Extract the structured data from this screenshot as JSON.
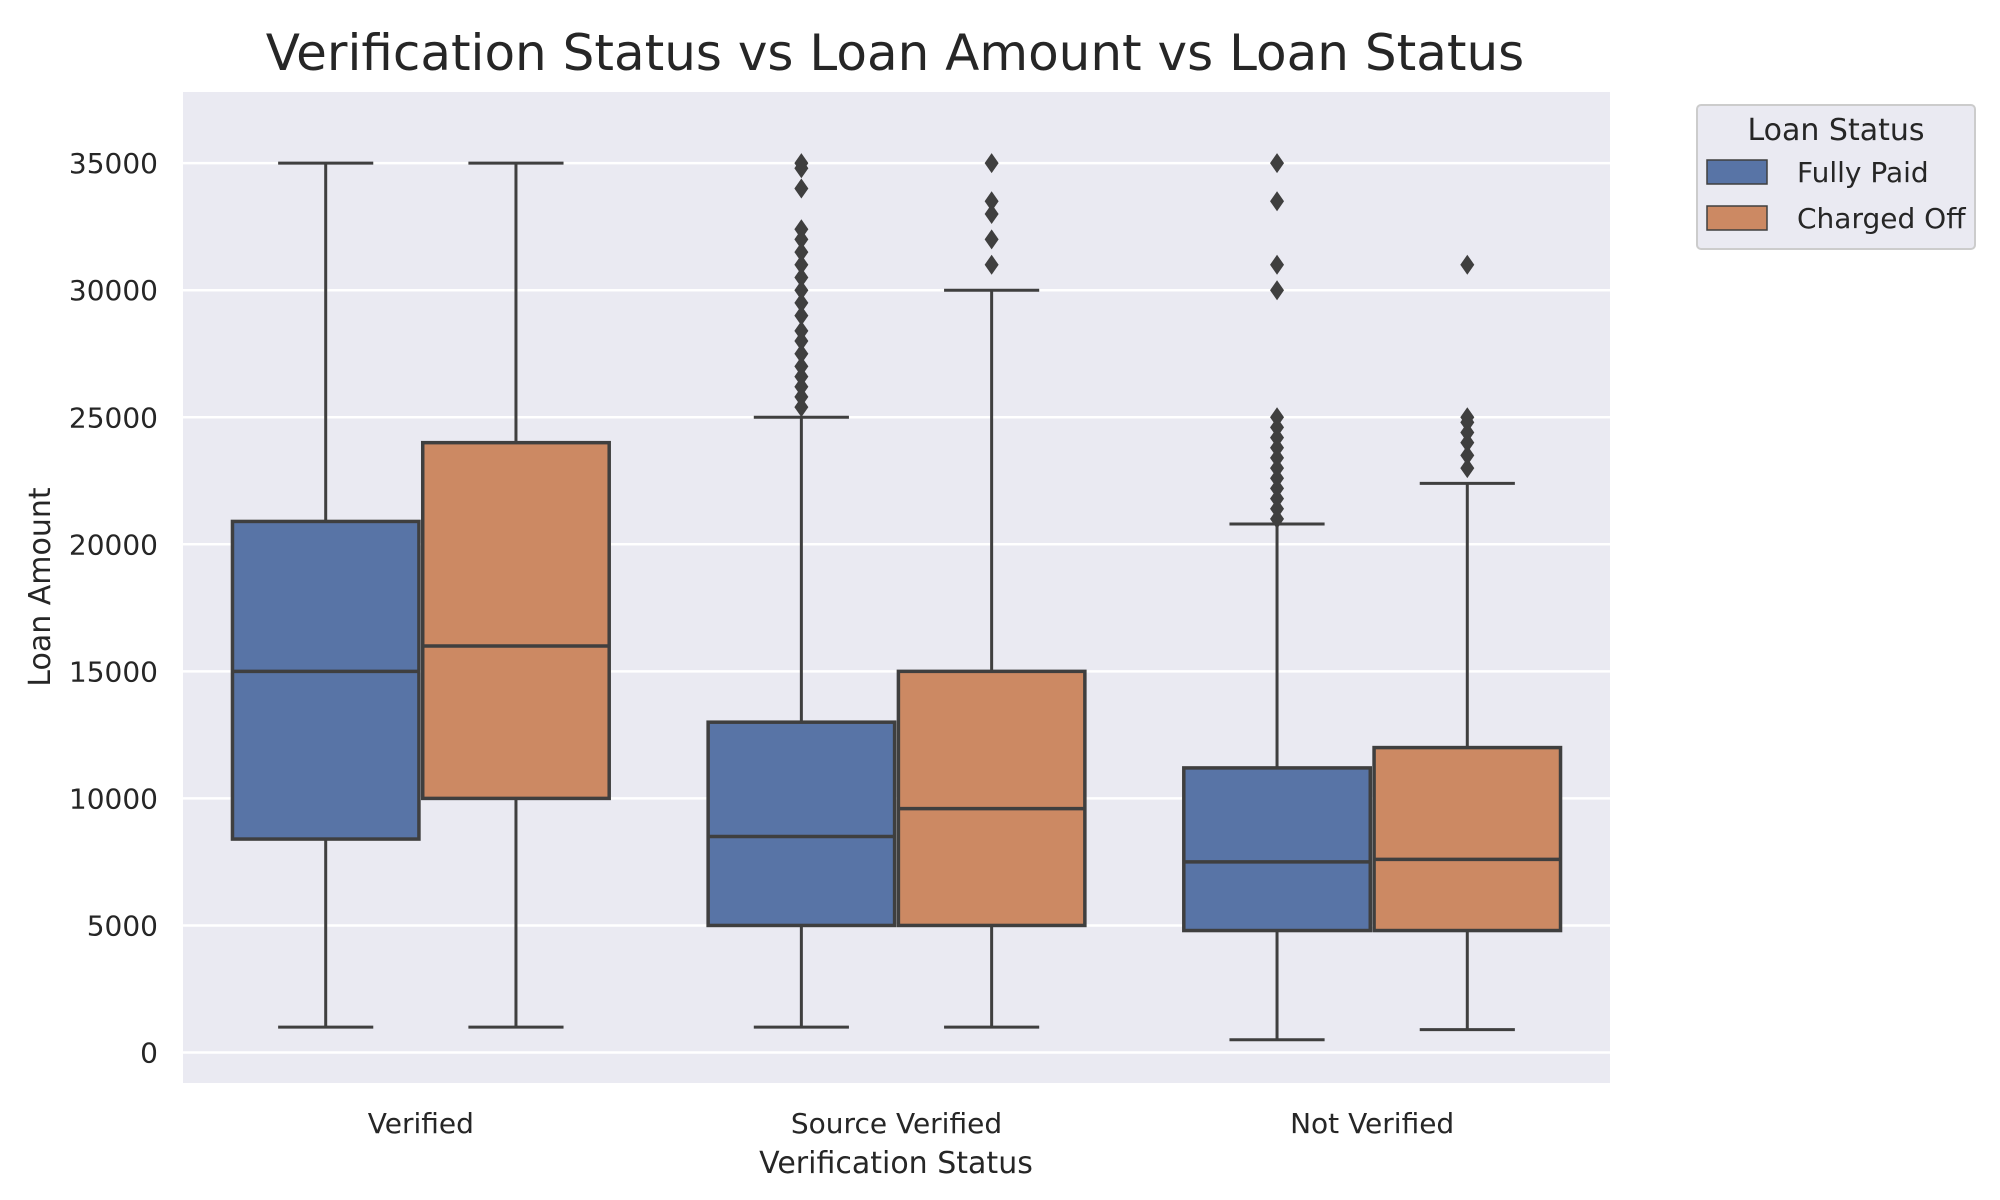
{
  "chart_data": {
    "type": "box",
    "title": "Verification Status vs Loan Amount vs Loan Status",
    "xlabel": "Verification Status",
    "ylabel": "Loan Amount",
    "ylim": [
      -1200,
      37800
    ],
    "yticks": [
      0,
      5000,
      10000,
      15000,
      20000,
      25000,
      30000,
      35000
    ],
    "categories": [
      "Verified",
      "Source Verified",
      "Not Verified"
    ],
    "grid": true,
    "legend": {
      "title": "Loan Status",
      "placement": "outside-top-right"
    },
    "series": [
      {
        "name": "Fully Paid",
        "color": "#5874a6",
        "boxes": [
          {
            "whisker_low": 1000,
            "q1": 8400,
            "median": 15000,
            "q3": 20900,
            "whisker_high": 35000,
            "outliers": []
          },
          {
            "whisker_low": 1000,
            "q1": 5000,
            "median": 8500,
            "q3": 13000,
            "whisker_high": 25000,
            "outliers": [
              25400,
              25800,
              26200,
              26600,
              27000,
              27500,
              28000,
              28400,
              29000,
              29500,
              30000,
              30500,
              31000,
              31500,
              32000,
              32400,
              34000,
              34800,
              35000
            ]
          },
          {
            "whisker_low": 500,
            "q1": 4800,
            "median": 7500,
            "q3": 11200,
            "whisker_high": 20800,
            "outliers": [
              21000,
              21400,
              21800,
              22200,
              22600,
              23000,
              23400,
              23800,
              24200,
              24600,
              25000,
              30000,
              31000,
              33500,
              35000
            ]
          }
        ]
      },
      {
        "name": "Charged Off",
        "color": "#cc8963",
        "boxes": [
          {
            "whisker_low": 1000,
            "q1": 10000,
            "median": 16000,
            "q3": 24000,
            "whisker_high": 35000,
            "outliers": []
          },
          {
            "whisker_low": 1000,
            "q1": 5000,
            "median": 9600,
            "q3": 15000,
            "whisker_high": 30000,
            "outliers": [
              31000,
              32000,
              33000,
              33500,
              35000
            ]
          },
          {
            "whisker_low": 900,
            "q1": 4800,
            "median": 7600,
            "q3": 12000,
            "whisker_high": 22400,
            "outliers": [
              23000,
              23500,
              24000,
              24400,
              24800,
              25000,
              31000
            ]
          }
        ]
      }
    ]
  }
}
